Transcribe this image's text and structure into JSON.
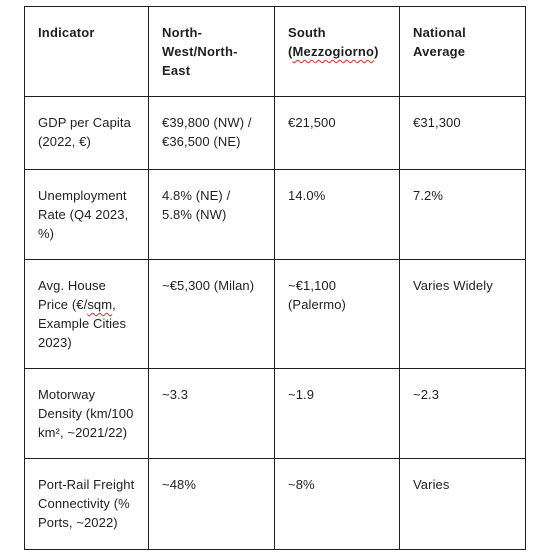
{
  "table": {
    "headers": {
      "indicator": "Indicator",
      "north": "North-West/North-East",
      "south_prefix": "South (",
      "south_word": "Mezzogiorno",
      "south_suffix": ")",
      "national": "National Average"
    },
    "rows": [
      {
        "indicator": "GDP per Capita (2022, €)",
        "north": "€39,800 (NW) / €36,500 (NE)",
        "south": "€21,500",
        "national": "€31,300"
      },
      {
        "indicator": "Unemployment Rate (Q4 2023, %)",
        "north": "4.8% (NE) / 5.8% (NW)",
        "south": "14.0%",
        "national": "7.2%"
      },
      {
        "indicator_prefix": "Avg. House Price (€/",
        "indicator_word": "sqm",
        "indicator_suffix": ", Example Cities 2023)",
        "north": "~€5,300 (Milan)",
        "south": "~€1,100 (Palermo)",
        "national": "Varies Widely"
      },
      {
        "indicator": "Motorway Density (km/100 km², ~2021/22)",
        "north": "~3.3",
        "south": "~1.9",
        "national": "~2.3"
      },
      {
        "indicator": "Port-Rail Freight Connectivity (% Ports, ~2022)",
        "north": "~48%",
        "south": "~8%",
        "national": "Varies"
      }
    ]
  }
}
